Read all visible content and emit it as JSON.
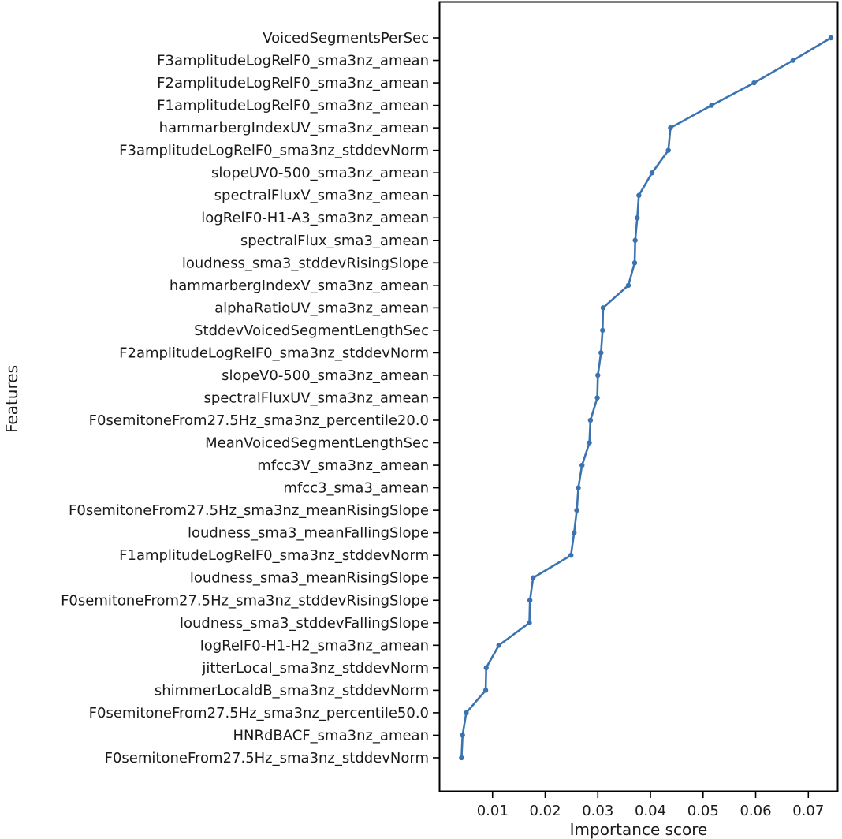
{
  "chart_data": {
    "type": "line",
    "xlabel": "Importance score",
    "ylabel": "Features",
    "xlim": [
      0.0,
      0.0755
    ],
    "xticks": [
      0.01,
      0.02,
      0.03,
      0.04,
      0.05,
      0.06,
      0.07
    ],
    "xtick_labels": [
      "0.01",
      "0.02",
      "0.03",
      "0.04",
      "0.05",
      "0.06",
      "0.07"
    ],
    "grid": false,
    "line_color": "#3a73b0",
    "categories": [
      "VoicedSegmentsPerSec",
      "F3amplitudeLogRelF0_sma3nz_amean",
      "F2amplitudeLogRelF0_sma3nz_amean",
      "F1amplitudeLogRelF0_sma3nz_amean",
      "hammarbergIndexUV_sma3nz_amean",
      "F3amplitudeLogRelF0_sma3nz_stddevNorm",
      "slopeUV0-500_sma3nz_amean",
      "spectralFluxV_sma3nz_amean",
      "logRelF0-H1-A3_sma3nz_amean",
      "spectralFlux_sma3_amean",
      "loudness_sma3_stddevRisingSlope",
      "hammarbergIndexV_sma3nz_amean",
      "alphaRatioUV_sma3nz_amean",
      "StddevVoicedSegmentLengthSec",
      "F2amplitudeLogRelF0_sma3nz_stddevNorm",
      "slopeV0-500_sma3nz_amean",
      "spectralFluxUV_sma3nz_amean",
      "F0semitoneFrom27.5Hz_sma3nz_percentile20.0",
      "MeanVoicedSegmentLengthSec",
      "mfcc3V_sma3nz_amean",
      "mfcc3_sma3_amean",
      "F0semitoneFrom27.5Hz_sma3nz_meanRisingSlope",
      "loudness_sma3_meanFallingSlope",
      "F1amplitudeLogRelF0_sma3nz_stddevNorm",
      "loudness_sma3_meanRisingSlope",
      "F0semitoneFrom27.5Hz_sma3nz_stddevRisingSlope",
      "loudness_sma3_stddevFallingSlope",
      "logRelF0-H1-H2_sma3nz_amean",
      "jitterLocal_sma3nz_stddevNorm",
      "shimmerLocaldB_sma3nz_stddevNorm",
      "F0semitoneFrom27.5Hz_sma3nz_percentile50.0",
      "HNRdBACF_sma3nz_amean",
      "F0semitoneFrom27.5Hz_sma3nz_stddevNorm"
    ],
    "values": [
      0.0743,
      0.0671,
      0.0597,
      0.0516,
      0.0438,
      0.0434,
      0.0403,
      0.0378,
      0.0375,
      0.0371,
      0.037,
      0.0358,
      0.031,
      0.0309,
      0.0306,
      0.03,
      0.0299,
      0.0286,
      0.0284,
      0.027,
      0.0263,
      0.026,
      0.0255,
      0.0249,
      0.0177,
      0.0171,
      0.017,
      0.0112,
      0.0088,
      0.0087,
      0.005,
      0.0043,
      0.0041
    ]
  }
}
